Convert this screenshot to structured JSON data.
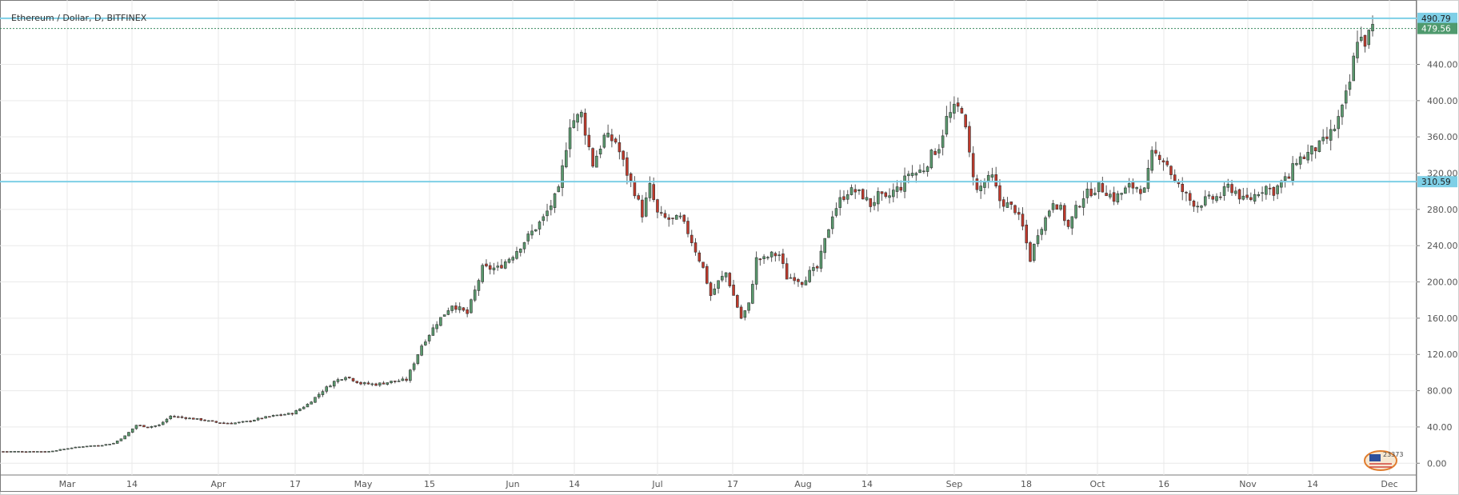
{
  "header": {
    "title": "Ethereum / Dollar, D, BITFINEX"
  },
  "colors": {
    "up": "#5a9a6e",
    "down": "#c0392b",
    "level_line": "#7ecfe6",
    "grid": "#e9e9e9",
    "axis_text": "#555555"
  },
  "logo": {
    "text": "23373",
    "icon": "flag-badge-icon"
  },
  "chart_data": {
    "type": "candlestick",
    "title": "Ethereum / Dollar, D, BITFINEX",
    "xlabel": "",
    "ylabel": "",
    "ylim": [
      -13,
      511
    ],
    "y_ticks": [
      "0.00",
      "40.00",
      "80.00",
      "120.00",
      "160.00",
      "200.00",
      "240.00",
      "280.00",
      "320.00",
      "360.00",
      "400.00",
      "440.00"
    ],
    "x_tick_labels": [
      "Mar",
      "14",
      "Apr",
      "17",
      "May",
      "15",
      "Jun",
      "14",
      "Jul",
      "17",
      "Aug",
      "14",
      "Sep",
      "18",
      "Oct",
      "16",
      "Nov",
      "14",
      "Dec"
    ],
    "grid": true,
    "horizontal_levels": [
      {
        "label": "490.79",
        "value": 490.79,
        "style": "solid"
      },
      {
        "label": "479.56",
        "value": 479.56,
        "style": "dotted"
      },
      {
        "label": "310.59",
        "value": 310.59,
        "style": "solid"
      }
    ],
    "anchors": [
      [
        0,
        13
      ],
      [
        12,
        13
      ],
      [
        18,
        17
      ],
      [
        22,
        19
      ],
      [
        26,
        20
      ],
      [
        29,
        22
      ],
      [
        32,
        30
      ],
      [
        35,
        42
      ],
      [
        38,
        40
      ],
      [
        41,
        42
      ],
      [
        44,
        52
      ],
      [
        48,
        50
      ],
      [
        52,
        48
      ],
      [
        56,
        45
      ],
      [
        60,
        44
      ],
      [
        64,
        46
      ],
      [
        68,
        50
      ],
      [
        72,
        53
      ],
      [
        76,
        55
      ],
      [
        80,
        65
      ],
      [
        84,
        80
      ],
      [
        87,
        90
      ],
      [
        90,
        96
      ],
      [
        94,
        88
      ],
      [
        98,
        87
      ],
      [
        102,
        90
      ],
      [
        106,
        92
      ],
      [
        110,
        130
      ],
      [
        114,
        155
      ],
      [
        118,
        175
      ],
      [
        122,
        165
      ],
      [
        126,
        215
      ],
      [
        130,
        215
      ],
      [
        134,
        230
      ],
      [
        138,
        250
      ],
      [
        142,
        270
      ],
      [
        146,
        300
      ],
      [
        149,
        375
      ],
      [
        152,
        385
      ],
      [
        155,
        330
      ],
      [
        158,
        360
      ],
      [
        161,
        355
      ],
      [
        164,
        320
      ],
      [
        166,
        300
      ],
      [
        168,
        275
      ],
      [
        170,
        305
      ],
      [
        172,
        275
      ],
      [
        174,
        270
      ],
      [
        176,
        268
      ],
      [
        178,
        270
      ],
      [
        180,
        255
      ],
      [
        182,
        235
      ],
      [
        184,
        215
      ],
      [
        186,
        185
      ],
      [
        188,
        200
      ],
      [
        190,
        210
      ],
      [
        192,
        185
      ],
      [
        194,
        160
      ],
      [
        196,
        175
      ],
      [
        198,
        225
      ],
      [
        200,
        225
      ],
      [
        202,
        230
      ],
      [
        204,
        230
      ],
      [
        206,
        205
      ],
      [
        208,
        205
      ],
      [
        210,
        200
      ],
      [
        212,
        210
      ],
      [
        214,
        215
      ],
      [
        216,
        245
      ],
      [
        218,
        275
      ],
      [
        220,
        290
      ],
      [
        222,
        300
      ],
      [
        224,
        300
      ],
      [
        226,
        295
      ],
      [
        228,
        285
      ],
      [
        230,
        295
      ],
      [
        232,
        290
      ],
      [
        234,
        300
      ],
      [
        236,
        305
      ],
      [
        238,
        320
      ],
      [
        240,
        320
      ],
      [
        242,
        325
      ],
      [
        244,
        340
      ],
      [
        246,
        350
      ],
      [
        248,
        380
      ],
      [
        250,
        390
      ],
      [
        252,
        392
      ],
      [
        254,
        340
      ],
      [
        256,
        300
      ],
      [
        258,
        310
      ],
      [
        260,
        315
      ],
      [
        262,
        290
      ],
      [
        264,
        285
      ],
      [
        266,
        280
      ],
      [
        268,
        260
      ],
      [
        270,
        225
      ],
      [
        272,
        255
      ],
      [
        274,
        270
      ],
      [
        276,
        290
      ],
      [
        278,
        280
      ],
      [
        280,
        260
      ],
      [
        282,
        280
      ],
      [
        284,
        295
      ],
      [
        286,
        300
      ],
      [
        288,
        305
      ],
      [
        290,
        300
      ],
      [
        292,
        292
      ],
      [
        294,
        298
      ],
      [
        296,
        305
      ],
      [
        298,
        305
      ],
      [
        300,
        300
      ],
      [
        302,
        340
      ],
      [
        304,
        340
      ],
      [
        306,
        330
      ],
      [
        308,
        310
      ],
      [
        310,
        300
      ],
      [
        312,
        290
      ],
      [
        314,
        285
      ],
      [
        316,
        290
      ],
      [
        318,
        292
      ],
      [
        320,
        295
      ],
      [
        322,
        305
      ],
      [
        324,
        300
      ],
      [
        326,
        290
      ],
      [
        328,
        292
      ],
      [
        330,
        300
      ],
      [
        332,
        305
      ],
      [
        334,
        300
      ],
      [
        336,
        310
      ],
      [
        338,
        315
      ],
      [
        340,
        335
      ],
      [
        342,
        338
      ],
      [
        344,
        345
      ],
      [
        346,
        350
      ],
      [
        348,
        358
      ],
      [
        350,
        370
      ],
      [
        352,
        390
      ],
      [
        354,
        420
      ],
      [
        356,
        470
      ],
      [
        358,
        465
      ],
      [
        360,
        480
      ]
    ],
    "candles_note": "Daily OHLC candles, roughly 360 sessions from late Feb to late Nov; values read from the price axis."
  }
}
